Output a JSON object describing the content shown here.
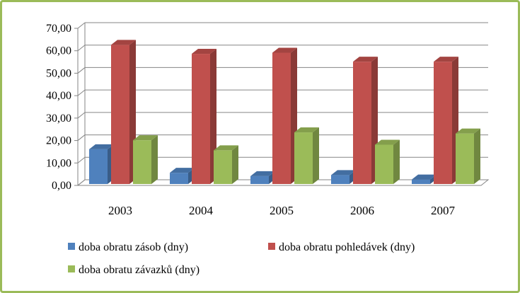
{
  "chart_data": {
    "type": "bar",
    "title": "",
    "xlabel": "",
    "ylabel": "",
    "categories": [
      "2003",
      "2004",
      "2005",
      "2006",
      "2007"
    ],
    "series": [
      {
        "name": "doba obratu zásob (dny)",
        "values": [
          15.5,
          5.0,
          3.5,
          4.0,
          2.0
        ],
        "color": "#4f81bd"
      },
      {
        "name": "doba obratu pohledávek (dny)",
        "values": [
          62.0,
          58.0,
          58.5,
          54.5,
          54.5
        ],
        "color": "#c0504d"
      },
      {
        "name": "doba obratu závazků (dny)",
        "values": [
          19.5,
          15.0,
          23.0,
          17.5,
          22.5
        ],
        "color": "#9bbb59"
      }
    ],
    "ylim": [
      0,
      70
    ],
    "yticks": [
      "0,00",
      "10,00",
      "20,00",
      "30,00",
      "40,00",
      "50,00",
      "60,00",
      "70,00"
    ],
    "grid": true,
    "legend_position": "bottom"
  },
  "colors": {
    "border": "#9bbb59",
    "grid": "#868686"
  }
}
